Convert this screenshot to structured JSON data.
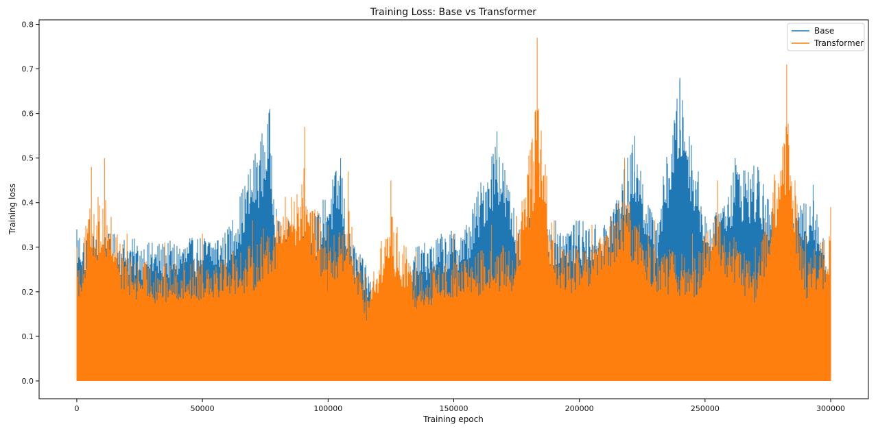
{
  "chart_data": {
    "type": "line",
    "title": "Training Loss: Base vs Transformer",
    "xlabel": "Training epoch",
    "ylabel": "Training loss",
    "xlim": [
      -15000,
      315000
    ],
    "ylim": [
      -0.04,
      0.81
    ],
    "x_ticks": [
      0,
      50000,
      100000,
      150000,
      200000,
      250000,
      300000
    ],
    "x_tick_labels": [
      "0",
      "50000",
      "100000",
      "150000",
      "200000",
      "250000",
      "300000"
    ],
    "y_ticks": [
      0.0,
      0.1,
      0.2,
      0.3,
      0.4,
      0.5,
      0.6,
      0.7,
      0.8
    ],
    "y_tick_labels": [
      "0.0",
      "0.1",
      "0.2",
      "0.3",
      "0.4",
      "0.5",
      "0.6",
      "0.7",
      "0.8"
    ],
    "grid": false,
    "legend_position": "top-right",
    "x_min": 0,
    "x_max": 300000,
    "series": [
      {
        "name": "Base",
        "color": "#1f77b4",
        "x": [
          0,
          15000,
          30000,
          45000,
          60000,
          76800,
          80000,
          95000,
          105000,
          108000,
          115000,
          126500,
          135000,
          145000,
          155000,
          167200,
          175000,
          190000,
          200000,
          210000,
          222000,
          230000,
          240000,
          252000,
          262000,
          271000,
          280000,
          293000,
          300000
        ],
        "envelope": [
          0.34,
          0.33,
          0.31,
          0.32,
          0.34,
          0.61,
          0.36,
          0.37,
          0.5,
          0.34,
          0.26,
          0.11,
          0.3,
          0.33,
          0.35,
          0.56,
          0.37,
          0.36,
          0.36,
          0.35,
          0.55,
          0.35,
          0.68,
          0.34,
          0.5,
          0.48,
          0.33,
          0.44,
          0.24
        ]
      },
      {
        "name": "Transformer",
        "color": "#ff7f0e",
        "x": [
          0,
          5800,
          11000,
          20000,
          35000,
          50000,
          70000,
          90700,
          100000,
          108000,
          115000,
          125000,
          135000,
          150000,
          165000,
          175000,
          183200,
          190000,
          205000,
          218000,
          230000,
          245000,
          255000,
          270000,
          282500,
          290000,
          300000
        ],
        "envelope": [
          0.3,
          0.48,
          0.5,
          0.33,
          0.31,
          0.33,
          0.36,
          0.57,
          0.35,
          0.47,
          0.24,
          0.45,
          0.29,
          0.33,
          0.35,
          0.37,
          0.77,
          0.36,
          0.35,
          0.5,
          0.36,
          0.33,
          0.45,
          0.3,
          0.71,
          0.33,
          0.39
        ]
      }
    ]
  }
}
